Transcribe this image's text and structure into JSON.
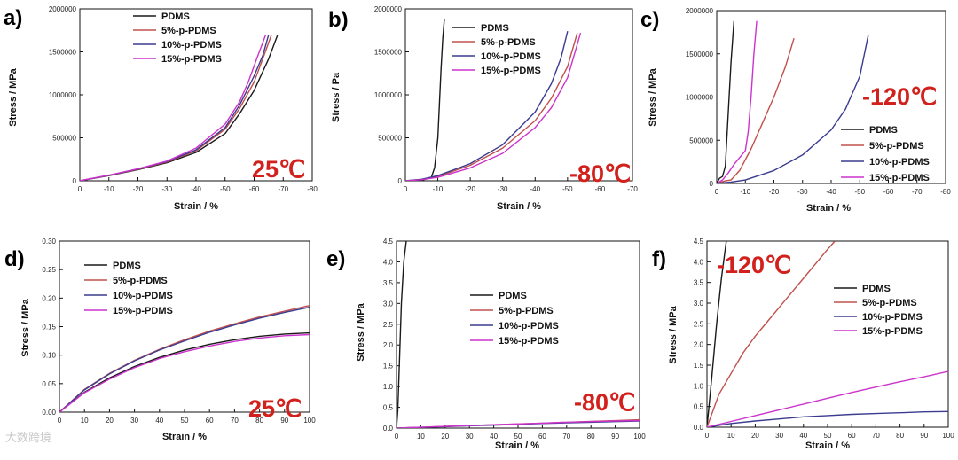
{
  "watermark": "大数跨境",
  "colors": {
    "PDMS": "#1a1a1a",
    "5%-p-PDMS": "#c0504d",
    "10%-p-PDMS": "#3b3b8f",
    "15%-p-PDMS": "#cc33cc",
    "temp": "#d2211d"
  },
  "chart_data": [
    {
      "id": "a",
      "type": "line",
      "label": "a)",
      "temperature": "25℃",
      "title": "",
      "xlabel": "Strain / %",
      "ylabel": "Stress / MPa",
      "xlim": [
        0,
        -80
      ],
      "ylim": [
        0,
        2000000
      ],
      "xticks": [
        "0",
        "-10",
        "-20",
        "-30",
        "-40",
        "-50",
        "-60",
        "-70",
        "-80"
      ],
      "yticks": [
        "0",
        "500000",
        "1000000",
        "1500000",
        "2000000"
      ],
      "legend": [
        "PDMS",
        "5%-p-PDMS",
        "10%-p-PDMS",
        "15%-p-PDMS"
      ],
      "legend_position": "top-left",
      "series": [
        {
          "name": "PDMS",
          "x": [
            0,
            -10,
            -20,
            -30,
            -40,
            -50,
            -55,
            -60,
            -65,
            -68
          ],
          "y": [
            0,
            60000,
            130000,
            210000,
            330000,
            550000,
            780000,
            1050000,
            1420000,
            1690000
          ]
        },
        {
          "name": "5%-p-PDMS",
          "x": [
            0,
            -10,
            -20,
            -30,
            -40,
            -50,
            -55,
            -60,
            -63,
            -66
          ],
          "y": [
            0,
            62000,
            135000,
            220000,
            350000,
            600000,
            840000,
            1150000,
            1420000,
            1700000
          ]
        },
        {
          "name": "10%-p-PDMS",
          "x": [
            0,
            -10,
            -20,
            -30,
            -40,
            -50,
            -55,
            -60,
            -63,
            -65
          ],
          "y": [
            0,
            64000,
            138000,
            225000,
            360000,
            620000,
            880000,
            1220000,
            1460000,
            1700000
          ]
        },
        {
          "name": "15%-p-PDMS",
          "x": [
            0,
            -10,
            -20,
            -30,
            -40,
            -50,
            -55,
            -58,
            -61,
            -64
          ],
          "y": [
            0,
            66000,
            140000,
            230000,
            380000,
            660000,
            920000,
            1150000,
            1430000,
            1700000
          ]
        }
      ]
    },
    {
      "id": "b",
      "type": "line",
      "label": "b)",
      "temperature": "-80℃",
      "title": "",
      "xlabel": "Strain / %",
      "ylabel": "Stress / Pa",
      "xlim": [
        0,
        -70
      ],
      "ylim": [
        0,
        2000000
      ],
      "xticks": [
        "0",
        "-10",
        "-20",
        "-30",
        "-40",
        "-50",
        "-60",
        "-70"
      ],
      "yticks": [
        "0",
        "500000",
        "1000000",
        "1500000",
        "2000000"
      ],
      "legend": [
        "PDMS",
        "5%-p-PDMS",
        "10%-p-PDMS",
        "15%-p-PDMS"
      ],
      "legend_position": "top-right",
      "series": [
        {
          "name": "PDMS",
          "x": [
            0,
            -5,
            -8,
            -9,
            -10,
            -10.5,
            -11,
            -11.5,
            -12
          ],
          "y": [
            0,
            5000,
            40000,
            150000,
            500000,
            900000,
            1300000,
            1650000,
            1880000
          ]
        },
        {
          "name": "5%-p-PDMS",
          "x": [
            0,
            -5,
            -10,
            -20,
            -30,
            -40,
            -45,
            -50,
            -53
          ],
          "y": [
            0,
            15000,
            50000,
            180000,
            380000,
            700000,
            960000,
            1330000,
            1720000
          ]
        },
        {
          "name": "10%-p-PDMS",
          "x": [
            0,
            -5,
            -10,
            -20,
            -30,
            -40,
            -45,
            -48,
            -50
          ],
          "y": [
            0,
            18000,
            60000,
            200000,
            420000,
            800000,
            1130000,
            1430000,
            1740000
          ]
        },
        {
          "name": "15%-p-PDMS",
          "x": [
            0,
            -5,
            -10,
            -20,
            -30,
            -40,
            -45,
            -50,
            -54
          ],
          "y": [
            0,
            12000,
            40000,
            150000,
            320000,
            620000,
            850000,
            1200000,
            1720000
          ]
        }
      ]
    },
    {
      "id": "c",
      "type": "line",
      "label": "c)",
      "temperature": "-120℃",
      "title": "",
      "xlabel": "Strain / %",
      "ylabel": "Stress / MPa",
      "xlim": [
        0,
        -80
      ],
      "ylim": [
        0,
        2000000
      ],
      "xticks": [
        "0",
        "-10",
        "-20",
        "-30",
        "-40",
        "-50",
        "-60",
        "-70",
        "-80"
      ],
      "yticks": [
        "0",
        "500000",
        "1000000",
        "1500000",
        "2000000"
      ],
      "legend": [
        "PDMS",
        "5%-p-PDMS",
        "10%-p-PDMS",
        "15%-p-PDMS"
      ],
      "legend_position": "right",
      "series": [
        {
          "name": "PDMS",
          "x": [
            0,
            -1,
            -2,
            -3,
            -4,
            -5,
            -6
          ],
          "y": [
            0,
            60000,
            80000,
            200000,
            800000,
            1400000,
            1880000
          ]
        },
        {
          "name": "5%-p-PDMS",
          "x": [
            0,
            -3,
            -5,
            -8,
            -12,
            -16,
            -20,
            -24,
            -27
          ],
          "y": [
            0,
            30000,
            40000,
            150000,
            400000,
            700000,
            1000000,
            1350000,
            1680000
          ]
        },
        {
          "name": "10%-p-PDMS",
          "x": [
            0,
            -5,
            -10,
            -20,
            -30,
            -40,
            -45,
            -50,
            -53
          ],
          "y": [
            0,
            15000,
            40000,
            150000,
            330000,
            620000,
            860000,
            1240000,
            1720000
          ]
        },
        {
          "name": "15%-p-PDMS",
          "x": [
            0,
            -2,
            -4,
            -6,
            -8,
            -10,
            -11,
            -12,
            -13,
            -14
          ],
          "y": [
            0,
            40000,
            120000,
            220000,
            300000,
            380000,
            600000,
            1000000,
            1500000,
            1880000
          ]
        }
      ]
    },
    {
      "id": "d",
      "type": "line",
      "label": "d)",
      "temperature": "25℃",
      "title": "",
      "xlabel": "Strain / %",
      "ylabel": "Stress / MPa",
      "xlim": [
        0,
        100
      ],
      "ylim": [
        0,
        0.3
      ],
      "xticks": [
        "0",
        "10",
        "20",
        "30",
        "40",
        "50",
        "60",
        "70",
        "80",
        "90",
        "100"
      ],
      "yticks": [
        "0.00",
        "0.05",
        "0.10",
        "0.15",
        "0.20",
        "0.25",
        "0.30"
      ],
      "legend": [
        "PDMS",
        "5%-p-PDMS",
        "10%-p-PDMS",
        "15%-p-PDMS"
      ],
      "legend_position": "top-left",
      "series": [
        {
          "name": "PDMS",
          "x": [
            0,
            10,
            20,
            30,
            40,
            50,
            60,
            70,
            80,
            90,
            100
          ],
          "y": [
            0,
            0.035,
            0.06,
            0.08,
            0.096,
            0.109,
            0.119,
            0.127,
            0.133,
            0.137,
            0.139
          ]
        },
        {
          "name": "5%-p-PDMS",
          "x": [
            0,
            10,
            20,
            30,
            40,
            50,
            60,
            70,
            80,
            90,
            100
          ],
          "y": [
            0,
            0.04,
            0.068,
            0.091,
            0.11,
            0.127,
            0.142,
            0.155,
            0.167,
            0.177,
            0.187
          ]
        },
        {
          "name": "10%-p-PDMS",
          "x": [
            0,
            10,
            20,
            30,
            40,
            50,
            60,
            70,
            80,
            90,
            100
          ],
          "y": [
            0,
            0.039,
            0.067,
            0.09,
            0.109,
            0.125,
            0.14,
            0.153,
            0.165,
            0.175,
            0.184
          ]
        },
        {
          "name": "15%-p-PDMS",
          "x": [
            0,
            10,
            20,
            30,
            40,
            50,
            60,
            70,
            80,
            90,
            100
          ],
          "y": [
            0,
            0.034,
            0.058,
            0.078,
            0.094,
            0.106,
            0.116,
            0.124,
            0.13,
            0.134,
            0.136
          ]
        }
      ]
    },
    {
      "id": "e",
      "type": "line",
      "label": "e)",
      "temperature": "-80℃",
      "title": "",
      "xlabel": "Strain / %",
      "ylabel": "Stress / MPa",
      "xlim": [
        0,
        100
      ],
      "ylim": [
        0,
        4.5
      ],
      "xticks": [
        "0",
        "10",
        "20",
        "30",
        "40",
        "50",
        "60",
        "70",
        "80",
        "90",
        "100"
      ],
      "yticks": [
        "0.0",
        "0.5",
        "1.0",
        "1.5",
        "2.0",
        "2.5",
        "3.0",
        "3.5",
        "4.0",
        "4.5"
      ],
      "legend": [
        "PDMS",
        "5%-p-PDMS",
        "10%-p-PDMS",
        "15%-p-PDMS"
      ],
      "legend_position": "center",
      "series": [
        {
          "name": "PDMS",
          "x": [
            0,
            0.5,
            1,
            1.5,
            2,
            3,
            4
          ],
          "y": [
            0,
            0.4,
            1.2,
            2.1,
            3.0,
            4.0,
            4.5
          ]
        },
        {
          "name": "5%-p-PDMS",
          "x": [
            0,
            10,
            20,
            30,
            40,
            50,
            60,
            70,
            80,
            90,
            100
          ],
          "y": [
            0,
            0.02,
            0.04,
            0.06,
            0.08,
            0.1,
            0.12,
            0.14,
            0.16,
            0.18,
            0.2
          ]
        },
        {
          "name": "10%-p-PDMS",
          "x": [
            0,
            10,
            20,
            30,
            40,
            50,
            60,
            70,
            80,
            90,
            100
          ],
          "y": [
            0,
            0.015,
            0.035,
            0.055,
            0.07,
            0.09,
            0.11,
            0.125,
            0.14,
            0.155,
            0.17
          ]
        },
        {
          "name": "15%-p-PDMS",
          "x": [
            0,
            10,
            20,
            30,
            40,
            50,
            60,
            70,
            80,
            90,
            100
          ],
          "y": [
            0,
            0.02,
            0.04,
            0.06,
            0.08,
            0.1,
            0.12,
            0.14,
            0.155,
            0.17,
            0.18
          ]
        }
      ]
    },
    {
      "id": "f",
      "type": "line",
      "label": "f)",
      "temperature": "-120℃",
      "title": "",
      "xlabel": "Strain / %",
      "ylabel": "Stress / MPa",
      "xlim": [
        0,
        100
      ],
      "ylim": [
        0,
        4.5
      ],
      "xticks": [
        "0",
        "10",
        "20",
        "30",
        "40",
        "50",
        "60",
        "70",
        "80",
        "90",
        "100"
      ],
      "yticks": [
        "0.0",
        "0.5",
        "1.0",
        "1.5",
        "2.0",
        "2.5",
        "3.0",
        "3.5",
        "4.0",
        "4.5"
      ],
      "legend": [
        "PDMS",
        "5%-p-PDMS",
        "10%-p-PDMS",
        "15%-p-PDMS"
      ],
      "legend_position": "right",
      "series": [
        {
          "name": "PDMS",
          "x": [
            0,
            2,
            4,
            6,
            8
          ],
          "y": [
            0,
            1.2,
            2.5,
            3.6,
            4.5
          ]
        },
        {
          "name": "5%-p-PDMS",
          "x": [
            0,
            5,
            10,
            15,
            20,
            25,
            30,
            35,
            40,
            45,
            50,
            53
          ],
          "y": [
            0,
            0.8,
            1.3,
            1.8,
            2.2,
            2.55,
            2.9,
            3.25,
            3.6,
            3.95,
            4.3,
            4.5
          ]
        },
        {
          "name": "10%-p-PDMS",
          "x": [
            0,
            10,
            20,
            30,
            40,
            50,
            60,
            70,
            80,
            90,
            100
          ],
          "y": [
            0,
            0.09,
            0.15,
            0.2,
            0.25,
            0.28,
            0.31,
            0.33,
            0.35,
            0.37,
            0.38
          ]
        },
        {
          "name": "15%-p-PDMS",
          "x": [
            0,
            10,
            20,
            30,
            40,
            50,
            60,
            70,
            80,
            90,
            100
          ],
          "y": [
            0,
            0.14,
            0.28,
            0.42,
            0.56,
            0.7,
            0.84,
            0.97,
            1.1,
            1.22,
            1.35
          ]
        }
      ]
    }
  ]
}
